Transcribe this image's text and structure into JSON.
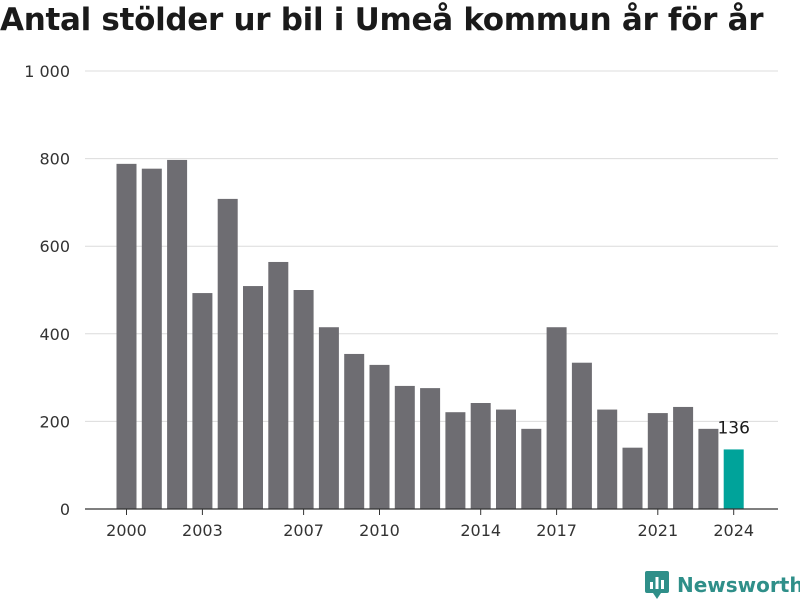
{
  "chart_data": {
    "type": "bar",
    "title": "Antal stölder ur bil i Umeå kommun år för år",
    "xlabel": "",
    "ylabel": "",
    "categories": [
      "2000",
      "2001",
      "2002",
      "2003",
      "2004",
      "2005",
      "2006",
      "2007",
      "2008",
      "2009",
      "2010",
      "2011",
      "2012",
      "2013",
      "2014",
      "2015",
      "2016",
      "2017",
      "2018",
      "2019",
      "2020",
      "2021",
      "2022",
      "2023",
      "2024"
    ],
    "values": [
      788,
      777,
      797,
      493,
      708,
      509,
      564,
      500,
      415,
      354,
      329,
      281,
      276,
      221,
      242,
      227,
      183,
      415,
      334,
      227,
      140,
      219,
      233,
      183,
      136
    ],
    "ylim": [
      0,
      1000
    ],
    "yticks": [
      0,
      200,
      400,
      600,
      800,
      1000
    ],
    "ytick_labels": [
      "0",
      "200",
      "400",
      "600",
      "800",
      "1 000"
    ],
    "xtick_labels": [
      "2000",
      "2003",
      "2007",
      "2010",
      "2014",
      "2017",
      "2021",
      "2024"
    ],
    "highlight": {
      "category": "2024",
      "label": "136"
    },
    "grid": true,
    "colors": {
      "bar": "#6e6d72",
      "highlight": "#00a39a",
      "grid": "#dcdcdc",
      "axis": "#333333"
    }
  },
  "brand": {
    "name": "Newsworthy",
    "icon": "bar-chart-badge-icon",
    "color": "#2f8f89"
  }
}
